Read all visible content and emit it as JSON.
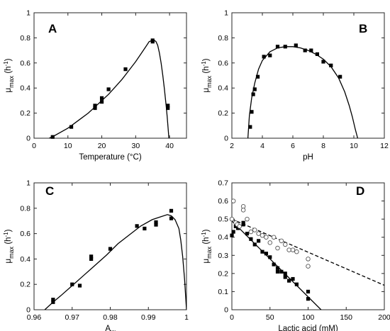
{
  "chart_data": [
    {
      "type": "scatter",
      "panel_label": "A",
      "xlabel": "Temperature (°C)",
      "ylabel_main": "μ",
      "ylabel_sub": "max",
      "ylabel_unit": " (h",
      "ylabel_exp": "-1",
      "ylabel_close": ")",
      "xlim": [
        0,
        45
      ],
      "ylim": [
        0,
        1
      ],
      "xticks": [
        "0",
        "10",
        "20",
        "30",
        "40"
      ],
      "yticks": [
        "0",
        "0.2",
        "0.4",
        "0.6",
        "0.8",
        "1"
      ],
      "series": [
        {
          "marker": "square-filled",
          "x": [
            5.5,
            11,
            18,
            18,
            20,
            20,
            22,
            27,
            35,
            35,
            39.5,
            39.5
          ],
          "y": [
            0.01,
            0.09,
            0.24,
            0.26,
            0.29,
            0.32,
            0.39,
            0.55,
            0.77,
            0.78,
            0.24,
            0.26
          ]
        },
        {
          "line": "solid",
          "x": [
            4.5,
            6,
            8,
            10,
            12,
            14,
            16,
            18,
            20,
            22,
            24,
            26,
            28,
            30,
            32,
            33,
            34,
            35,
            35.5,
            36,
            36.5,
            37,
            37.5,
            38,
            38.5,
            39,
            39.3,
            39.6,
            39.8
          ],
          "y": [
            0,
            0.02,
            0.05,
            0.08,
            0.12,
            0.16,
            0.2,
            0.25,
            0.3,
            0.35,
            0.41,
            0.47,
            0.54,
            0.61,
            0.69,
            0.73,
            0.77,
            0.78,
            0.78,
            0.77,
            0.74,
            0.68,
            0.6,
            0.5,
            0.39,
            0.26,
            0.17,
            0.07,
            0
          ]
        }
      ]
    },
    {
      "type": "scatter",
      "panel_label": "B",
      "xlabel": "pH",
      "ylabel_main": "μ",
      "ylabel_sub": "max",
      "ylabel_unit": " (h",
      "ylabel_exp": "-1",
      "ylabel_close": ")",
      "xlim": [
        2,
        12
      ],
      "ylim": [
        0,
        1
      ],
      "xticks": [
        "2",
        "4",
        "6",
        "8",
        "10",
        "12"
      ],
      "yticks": [
        "0",
        "0.2",
        "0.4",
        "0.6",
        "0.8",
        "1"
      ],
      "series": [
        {
          "marker": "square-filled",
          "x": [
            3.2,
            3.3,
            3.4,
            3.5,
            3.7,
            4.1,
            4.5,
            5.0,
            5.5,
            6.2,
            6.8,
            7.2,
            7.6,
            8.0,
            8.5,
            9.1
          ],
          "y": [
            0.09,
            0.21,
            0.35,
            0.39,
            0.49,
            0.65,
            0.66,
            0.73,
            0.73,
            0.74,
            0.7,
            0.7,
            0.67,
            0.61,
            0.58,
            0.49
          ]
        },
        {
          "line": "solid",
          "x": [
            3.05,
            3.15,
            3.3,
            3.5,
            3.75,
            4.0,
            4.5,
            5.0,
            5.5,
            6.0,
            6.5,
            7.0,
            7.5,
            8.0,
            8.5,
            9.0,
            9.4,
            9.7,
            9.9,
            10.1,
            10.25
          ],
          "y": [
            0,
            0.18,
            0.32,
            0.44,
            0.55,
            0.62,
            0.69,
            0.72,
            0.73,
            0.73,
            0.72,
            0.7,
            0.67,
            0.63,
            0.57,
            0.48,
            0.37,
            0.26,
            0.17,
            0.07,
            0
          ]
        }
      ]
    },
    {
      "type": "scatter",
      "panel_label": "C",
      "xlabel_main": "A",
      "xlabel_sub": "w",
      "ylabel_main": "μ",
      "ylabel_sub": "max",
      "ylabel_unit": " (h",
      "ylabel_exp": "-1",
      "ylabel_close": ")",
      "xlim": [
        0.96,
        1
      ],
      "ylim": [
        0,
        1
      ],
      "xticks": [
        "0.96",
        "0.97",
        "0.98",
        "0.99",
        "1"
      ],
      "yticks": [
        "0",
        "0.2",
        "0.4",
        "0.6",
        "0.8",
        "1"
      ],
      "series": [
        {
          "marker": "square-filled",
          "x": [
            0.965,
            0.965,
            0.97,
            0.972,
            0.975,
            0.975,
            0.98,
            0.987,
            0.989,
            0.992,
            0.992,
            0.996,
            0.996
          ],
          "y": [
            0.06,
            0.08,
            0.2,
            0.19,
            0.4,
            0.42,
            0.48,
            0.66,
            0.64,
            0.67,
            0.69,
            0.72,
            0.78
          ]
        },
        {
          "line": "solid",
          "x": [
            0.9628,
            0.965,
            0.967,
            0.97,
            0.973,
            0.976,
            0.979,
            0.982,
            0.985,
            0.988,
            0.991,
            0.993,
            0.995,
            0.996,
            0.997,
            0.998,
            0.9985,
            0.999,
            0.9995,
            1.0
          ],
          "y": [
            0,
            0.06,
            0.11,
            0.19,
            0.27,
            0.35,
            0.43,
            0.52,
            0.59,
            0.66,
            0.71,
            0.73,
            0.75,
            0.74,
            0.71,
            0.64,
            0.55,
            0.42,
            0.24,
            0
          ]
        }
      ]
    },
    {
      "type": "scatter",
      "panel_label": "D",
      "xlabel": "Lactic acid (mM)",
      "ylabel_main": "μ",
      "ylabel_sub": "max",
      "ylabel_unit": " (h",
      "ylabel_exp": "-1",
      "ylabel_close": ")",
      "xlim": [
        0,
        200
      ],
      "ylim": [
        0,
        0.7
      ],
      "xticks": [
        "0",
        "50",
        "100",
        "150",
        "200"
      ],
      "yticks": [
        "0",
        "0.1",
        "0.2",
        "0.3",
        "0.4",
        "0.5",
        "0.6",
        "0.7"
      ],
      "series": [
        {
          "marker": "square-filled",
          "x": [
            0,
            2,
            5,
            8,
            15,
            15,
            20,
            25,
            30,
            35,
            40,
            45,
            50,
            55,
            60,
            60,
            65,
            70,
            70,
            75,
            80,
            85,
            100,
            100
          ],
          "y": [
            0.41,
            0.43,
            0.46,
            0.45,
            0.47,
            0.48,
            0.42,
            0.39,
            0.36,
            0.38,
            0.32,
            0.31,
            0.29,
            0.25,
            0.23,
            0.21,
            0.21,
            0.2,
            0.18,
            0.16,
            0.17,
            0.14,
            0.1,
            0.06
          ]
        },
        {
          "marker": "circle-open",
          "x": [
            0,
            2,
            5,
            7,
            10,
            15,
            15,
            20,
            25,
            30,
            35,
            40,
            45,
            50,
            55,
            60,
            65,
            70,
            75,
            80,
            85,
            100,
            100
          ],
          "y": [
            0.5,
            0.6,
            0.48,
            0.47,
            0.46,
            0.57,
            0.55,
            0.5,
            0.43,
            0.44,
            0.42,
            0.41,
            0.4,
            0.37,
            0.4,
            0.34,
            0.38,
            0.36,
            0.33,
            0.33,
            0.32,
            0.28,
            0.24
          ]
        },
        {
          "line": "solid",
          "x": [
            0,
            117
          ],
          "y": [
            0.49,
            0
          ]
        },
        {
          "line": "dashed",
          "x": [
            0,
            200
          ],
          "y": [
            0.5,
            0.135
          ]
        }
      ]
    }
  ]
}
